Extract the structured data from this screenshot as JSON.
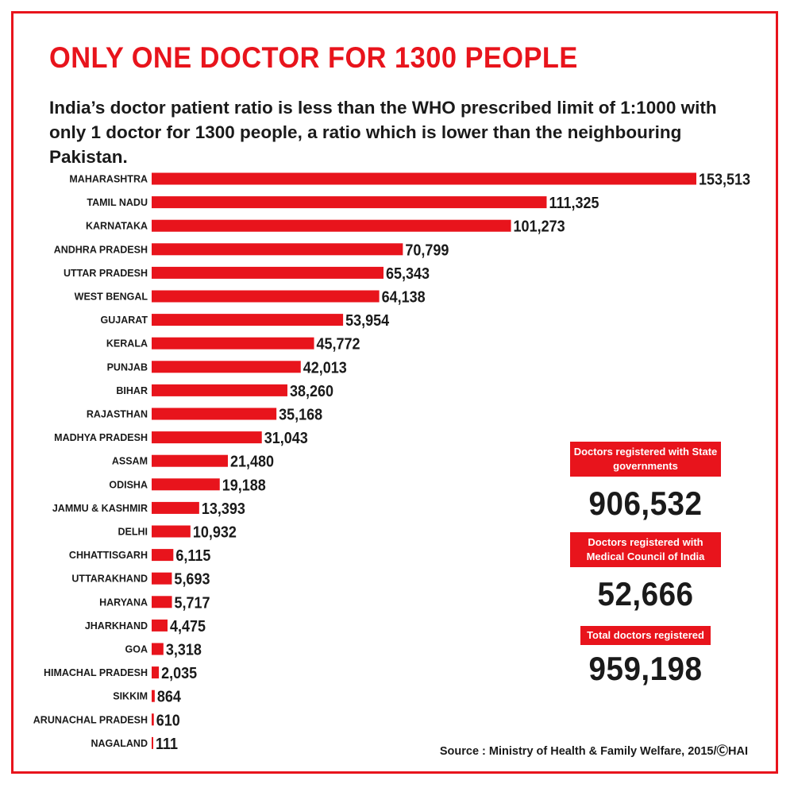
{
  "title": "ONLY ONE DOCTOR FOR 1300 PEOPLE",
  "subtitle": "India’s doctor patient ratio is less than the WHO prescribed limit of 1:1000 with only 1 doctor for 1300 people, a ratio which is lower than the neighbouring Pakistan.",
  "colors": {
    "accent": "#e8141c",
    "text": "#1a1a1a"
  },
  "chart_data": {
    "type": "bar",
    "orientation": "horizontal",
    "categories": [
      "MAHARASHTRA",
      "TAMIL NADU",
      "KARNATAKA",
      "ANDHRA PRADESH",
      "UTTAR PRADESH",
      "WEST BENGAL",
      "GUJARAT",
      "KERALA",
      "PUNJAB",
      "BIHAR",
      "RAJASTHAN",
      "MADHYA PRADESH",
      "ASSAM",
      "ODISHA",
      "JAMMU & KASHMIR",
      "DELHI",
      "CHHATTISGARH",
      "UTTARAKHAND",
      "HARYANA",
      "JHARKHAND",
      "GOA",
      "HIMACHAL PRADESH",
      "SIKKIM",
      "ARUNACHAL PRADESH",
      "NAGALAND"
    ],
    "values": [
      153513,
      111325,
      101273,
      70799,
      65343,
      64138,
      53954,
      45772,
      42013,
      38260,
      35168,
      31043,
      21480,
      19188,
      13393,
      10932,
      6115,
      5693,
      5717,
      4475,
      3318,
      2035,
      864,
      610,
      111
    ],
    "value_labels": [
      "153,513",
      "111,325",
      "101,273",
      "70,799",
      "65,343",
      "64,138",
      "53,954",
      "45,772",
      "42,013",
      "38,260",
      "35,168",
      "31,043",
      "21,480",
      "19,188",
      "13,393",
      "10,932",
      "6,115",
      "5,693",
      "5,717",
      "4,475",
      "3,318",
      "2,035",
      "864",
      "610",
      "111"
    ],
    "bar_color": "#e8141c",
    "grid": false,
    "legend": false
  },
  "stats": [
    {
      "label": "Doctors registered with State governments",
      "value": "906,532"
    },
    {
      "label": "Doctors registered with Medical Council of India",
      "value": "52,666"
    },
    {
      "label": "Total doctors registered",
      "value": "959,198"
    }
  ],
  "source": "Source : Ministry of Health & Family Welfare, 2015/ⒸHAI"
}
